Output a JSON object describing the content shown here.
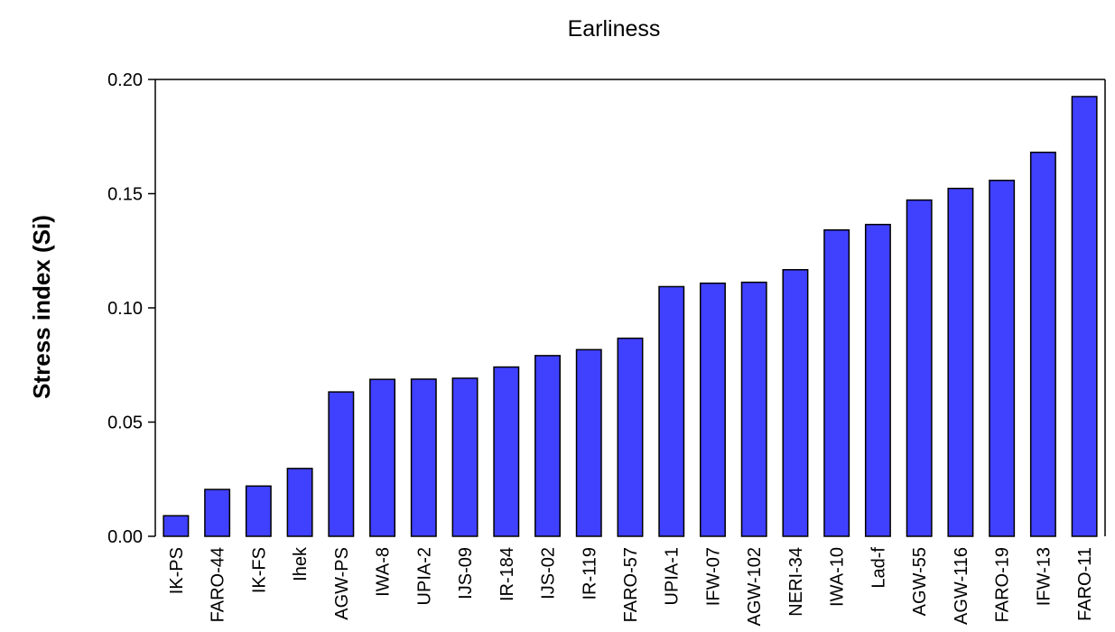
{
  "chart_data": {
    "type": "bar",
    "title": "Earliness",
    "xlabel": "",
    "ylabel": "Stress index (Si)",
    "ylim": [
      0,
      0.2
    ],
    "yticks": [
      "0.00",
      "0.05",
      "0.10",
      "0.15",
      "0.20"
    ],
    "grid": false,
    "categories": [
      "IK-PS",
      "FARO-44",
      "IK-FS",
      "Ihek",
      "AGW-PS",
      "IWA-8",
      "UPIA-2",
      "IJS-09",
      "IR-184",
      "IJS-02",
      "IR-119",
      "FARO-57",
      "UPIA-1",
      "IFW-07",
      "AGW-102",
      "NERI-34",
      "IWA-10",
      "Lad-f",
      "AGW-55",
      "AGW-116",
      "FARO-19",
      "IFW-13",
      "FARO-11"
    ],
    "values": [
      0.009,
      0.0205,
      0.022,
      0.0297,
      0.0632,
      0.0687,
      0.0688,
      0.0692,
      0.0741,
      0.0791,
      0.0817,
      0.0867,
      0.1093,
      0.1108,
      0.1112,
      0.1167,
      0.1341,
      0.1365,
      0.1472,
      0.1523,
      0.1558,
      0.1681,
      0.1925
    ],
    "colors": {
      "bar_fill": "#4040ff",
      "bar_stroke": "#000000",
      "axis": "#000000"
    }
  }
}
